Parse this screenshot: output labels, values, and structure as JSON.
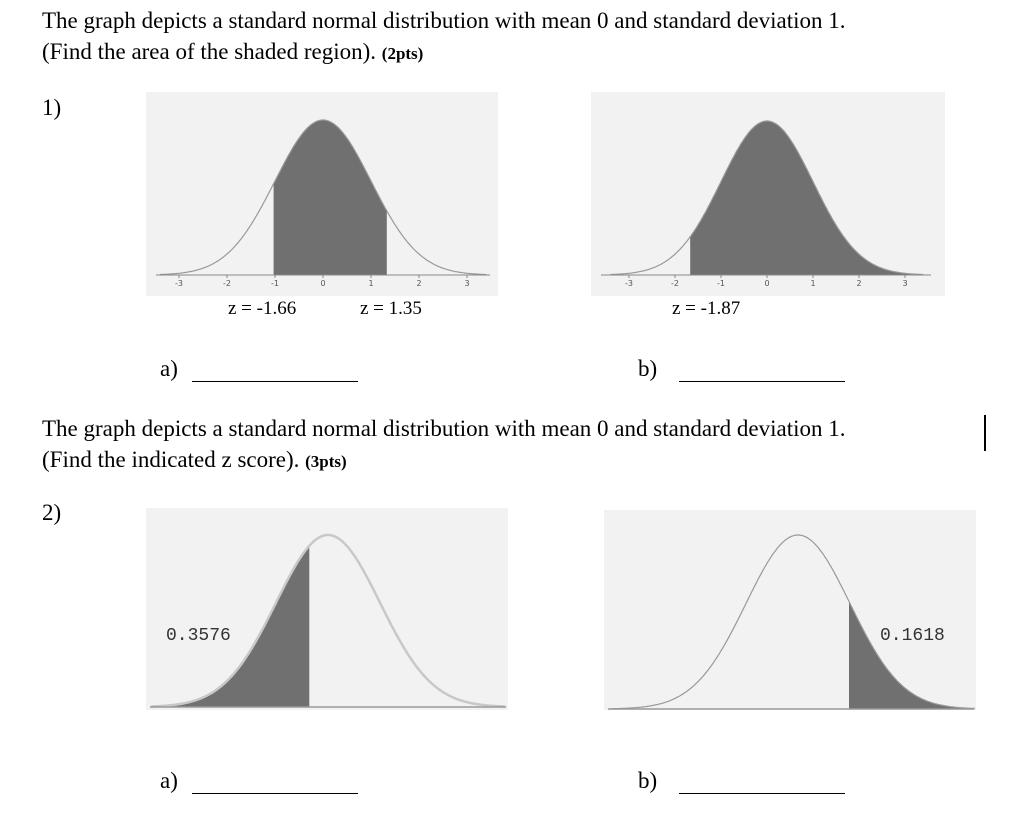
{
  "section1": {
    "instruction_line1": "The graph depicts a standard normal distribution with mean 0 and standard deviation 1.",
    "instruction_line2": "(Find the area of the shaded region).",
    "points": "(2pts)",
    "number": "1)"
  },
  "graph1a": {
    "ticks": [
      "-3",
      "-2",
      "-1",
      "0",
      "1",
      "2",
      "3"
    ],
    "z_left_label": "z = -1.66",
    "z_right_label": "z = 1.35",
    "answer_label": "a)"
  },
  "graph1b": {
    "ticks": [
      "-3",
      "-2",
      "-1",
      "0",
      "1",
      "2",
      "3"
    ],
    "z_label": "z = -1.87",
    "answer_label": "b)"
  },
  "section2": {
    "instruction_line1": "The graph depicts a standard normal distribution with mean 0 and standard deviation 1.",
    "instruction_line2": "(Find the indicated z score).",
    "points": "(3pts)",
    "number": "2)"
  },
  "graph2a": {
    "area_label": "0.3576",
    "answer_label": "a)"
  },
  "graph2b": {
    "area_label": "0.1618",
    "answer_label": "b)"
  },
  "colors": {
    "shade": "#707070",
    "curve": "#999999",
    "panel": "#f2f2f2"
  }
}
